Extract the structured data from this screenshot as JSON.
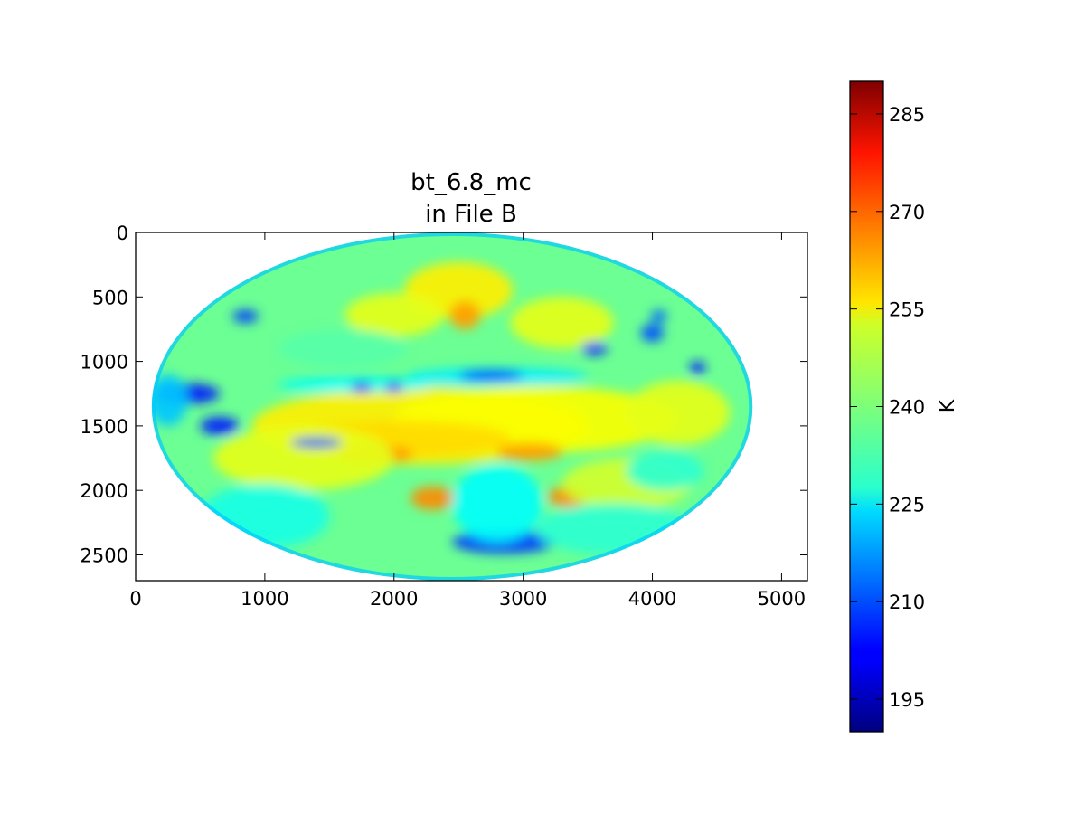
{
  "chart_data": {
    "type": "heatmap",
    "title_lines": [
      "bt_6.8_mc",
      "in File B"
    ],
    "xlim": [
      0,
      5200
    ],
    "ylim": [
      2700,
      0
    ],
    "x_ticks": [
      0,
      1000,
      2000,
      3000,
      4000,
      5000
    ],
    "y_ticks": [
      0,
      500,
      1000,
      1500,
      2000,
      2500
    ],
    "disk": {
      "center_x": 2450,
      "center_y": 1350,
      "radius_x": 2325,
      "radius_y": 1350
    },
    "colorbar": {
      "label": "K",
      "range": [
        190,
        290
      ],
      "ticks": [
        195,
        210,
        225,
        240,
        255,
        270,
        285
      ],
      "colormap": "jet",
      "placement": "right"
    },
    "field": {
      "background_level": 238,
      "features": [
        {
          "kind": "warm",
          "x": 2500,
          "y": 450,
          "rx": 420,
          "ry": 220,
          "level": 254
        },
        {
          "kind": "warm",
          "x": 2550,
          "y": 640,
          "rx": 120,
          "ry": 110,
          "level": 262
        },
        {
          "kind": "warm",
          "x": 2000,
          "y": 640,
          "rx": 380,
          "ry": 170,
          "level": 250
        },
        {
          "kind": "warm",
          "x": 3300,
          "y": 700,
          "rx": 400,
          "ry": 200,
          "level": 250
        },
        {
          "kind": "warm",
          "x": 2200,
          "y": 1500,
          "rx": 1300,
          "ry": 300,
          "level": 254
        },
        {
          "kind": "warm",
          "x": 3100,
          "y": 1450,
          "rx": 1100,
          "ry": 260,
          "level": 252
        },
        {
          "kind": "warm",
          "x": 2000,
          "y": 1600,
          "rx": 900,
          "ry": 140,
          "level": 256
        },
        {
          "kind": "warm",
          "x": 1850,
          "y": 1720,
          "rx": 300,
          "ry": 70,
          "level": 263
        },
        {
          "kind": "warm",
          "x": 3050,
          "y": 1700,
          "rx": 260,
          "ry": 70,
          "level": 262
        },
        {
          "kind": "warm",
          "x": 2300,
          "y": 2060,
          "rx": 170,
          "ry": 90,
          "level": 264
        },
        {
          "kind": "warm",
          "x": 3350,
          "y": 2050,
          "rx": 160,
          "ry": 80,
          "level": 264
        },
        {
          "kind": "warm",
          "x": 1300,
          "y": 1750,
          "rx": 700,
          "ry": 250,
          "level": 250
        },
        {
          "kind": "warm",
          "x": 3800,
          "y": 1950,
          "rx": 500,
          "ry": 200,
          "level": 248
        },
        {
          "kind": "warm",
          "x": 4200,
          "y": 1400,
          "rx": 400,
          "ry": 250,
          "level": 250
        },
        {
          "kind": "cold",
          "x": 1700,
          "y": 1180,
          "rx": 600,
          "ry": 60,
          "level": 228
        },
        {
          "kind": "cold",
          "x": 2800,
          "y": 1120,
          "rx": 700,
          "ry": 70,
          "level": 226
        },
        {
          "kind": "cold",
          "x": 2750,
          "y": 1110,
          "rx": 250,
          "ry": 40,
          "level": 205
        },
        {
          "kind": "cold",
          "x": 1750,
          "y": 1200,
          "rx": 80,
          "ry": 40,
          "level": 205
        },
        {
          "kind": "cold",
          "x": 2000,
          "y": 1200,
          "rx": 70,
          "ry": 40,
          "level": 207
        },
        {
          "kind": "cold",
          "x": 400,
          "y": 1250,
          "rx": 250,
          "ry": 80,
          "level": 205
        },
        {
          "kind": "cold",
          "x": 250,
          "y": 1300,
          "rx": 150,
          "ry": 200,
          "level": 222
        },
        {
          "kind": "cold",
          "x": 650,
          "y": 1500,
          "rx": 150,
          "ry": 70,
          "level": 205
        },
        {
          "kind": "cold",
          "x": 850,
          "y": 650,
          "rx": 100,
          "ry": 50,
          "level": 208
        },
        {
          "kind": "cold",
          "x": 1400,
          "y": 1630,
          "rx": 200,
          "ry": 40,
          "level": 210
        },
        {
          "kind": "cold",
          "x": 3550,
          "y": 900,
          "rx": 100,
          "ry": 50,
          "level": 205
        },
        {
          "kind": "cold",
          "x": 4000,
          "y": 780,
          "rx": 90,
          "ry": 70,
          "level": 210
        },
        {
          "kind": "cold",
          "x": 4350,
          "y": 1050,
          "rx": 60,
          "ry": 50,
          "level": 205
        },
        {
          "kind": "cold",
          "x": 4050,
          "y": 650,
          "rx": 60,
          "ry": 50,
          "level": 212
        },
        {
          "kind": "cold",
          "x": 2850,
          "y": 2400,
          "rx": 400,
          "ry": 90,
          "level": 208
        },
        {
          "kind": "cold",
          "x": 2800,
          "y": 2100,
          "rx": 350,
          "ry": 300,
          "level": 228
        },
        {
          "kind": "cold",
          "x": 1000,
          "y": 2200,
          "rx": 500,
          "ry": 250,
          "level": 230
        },
        {
          "kind": "cold",
          "x": 3700,
          "y": 2300,
          "rx": 600,
          "ry": 200,
          "level": 232
        },
        {
          "kind": "cold",
          "x": 4100,
          "y": 1850,
          "rx": 300,
          "ry": 150,
          "level": 232
        },
        {
          "kind": "cold",
          "x": 1600,
          "y": 900,
          "rx": 500,
          "ry": 150,
          "level": 236
        }
      ]
    }
  }
}
